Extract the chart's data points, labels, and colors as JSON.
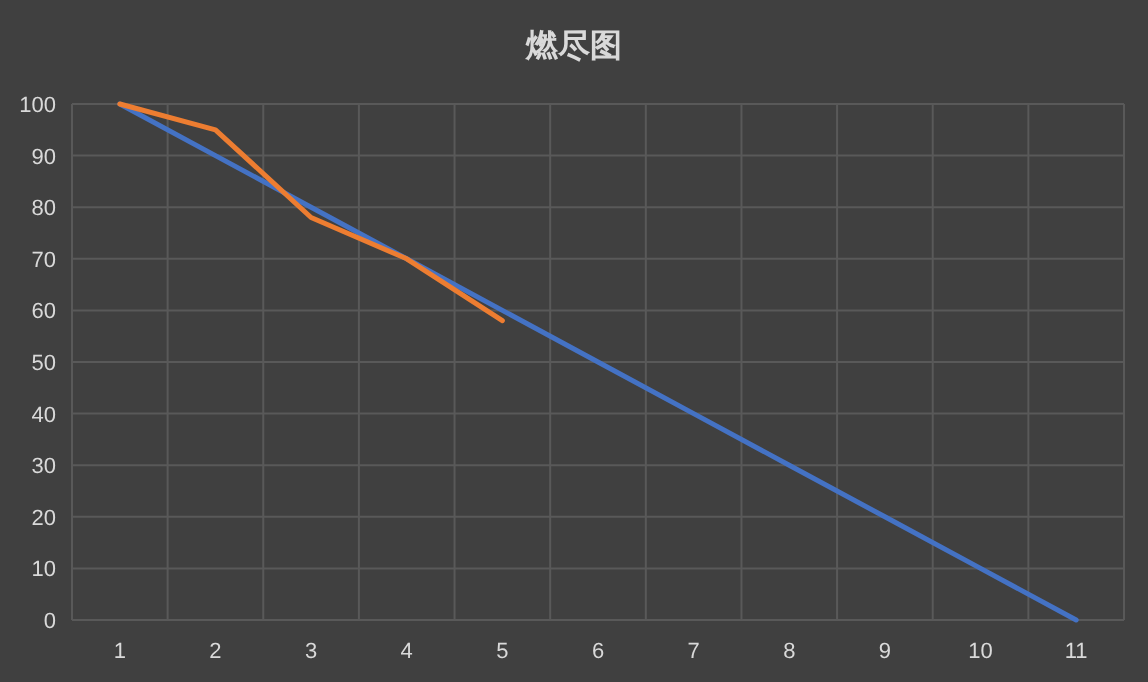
{
  "chart_data": {
    "type": "line",
    "title": "燃尽图",
    "categories": [
      "1",
      "2",
      "3",
      "4",
      "5",
      "6",
      "7",
      "8",
      "9",
      "10",
      "11"
    ],
    "series": [
      {
        "color": "#4472c4",
        "values": [
          100,
          90,
          80,
          70,
          60,
          50,
          40,
          30,
          20,
          10,
          0
        ]
      },
      {
        "color": "#ed7d31",
        "values": [
          100,
          95,
          78,
          70,
          58,
          null,
          null,
          null,
          null,
          null,
          null
        ]
      }
    ],
    "ylim": [
      0,
      100
    ],
    "yticks": [
      0,
      10,
      20,
      30,
      40,
      50,
      60,
      70,
      80,
      90,
      100
    ],
    "grid": true,
    "marker": "none",
    "line_style": "solid"
  }
}
